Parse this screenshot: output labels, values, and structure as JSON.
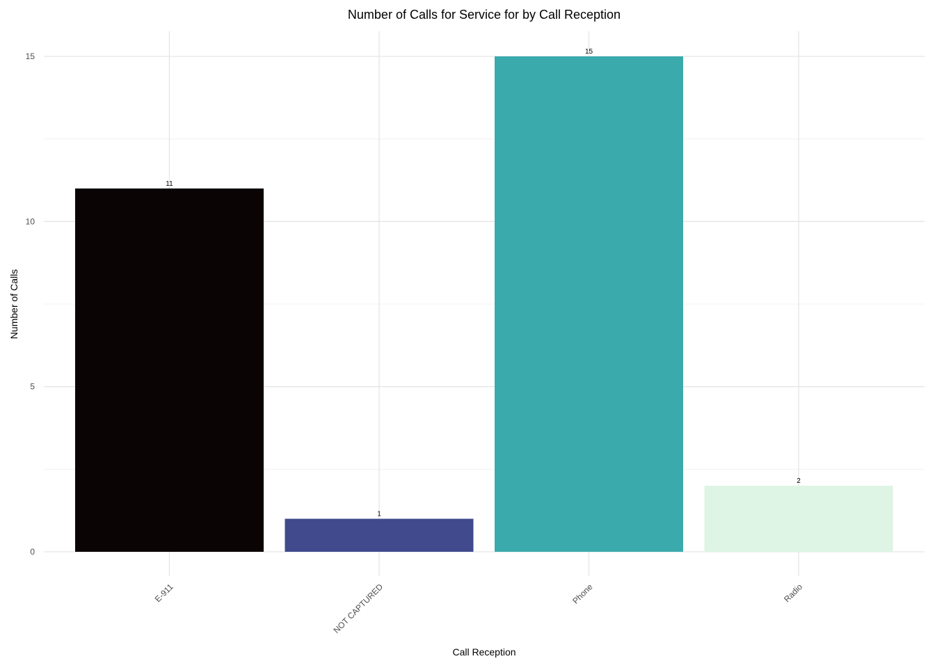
{
  "chart_data": {
    "type": "bar",
    "title": "Number of Calls for Service for by Call Reception",
    "xlabel": "Call Reception",
    "ylabel": "Number of Calls",
    "categories": [
      "E-911",
      "NOT CAPTURED",
      "Phone",
      "Radio"
    ],
    "values": [
      11,
      1,
      15,
      2
    ],
    "data_labels": [
      "11",
      "1",
      "15",
      "2"
    ],
    "colors": [
      "#0b0405",
      "#414a8c",
      "#3aaaac",
      "#def4e5"
    ],
    "ylim": [
      0,
      15
    ],
    "yticks": [
      0,
      5,
      10,
      15
    ],
    "ytick_labels": [
      "0",
      "5",
      "10",
      "15"
    ],
    "grid": true,
    "legend": "none",
    "x_tick_rotation_deg": 45
  }
}
